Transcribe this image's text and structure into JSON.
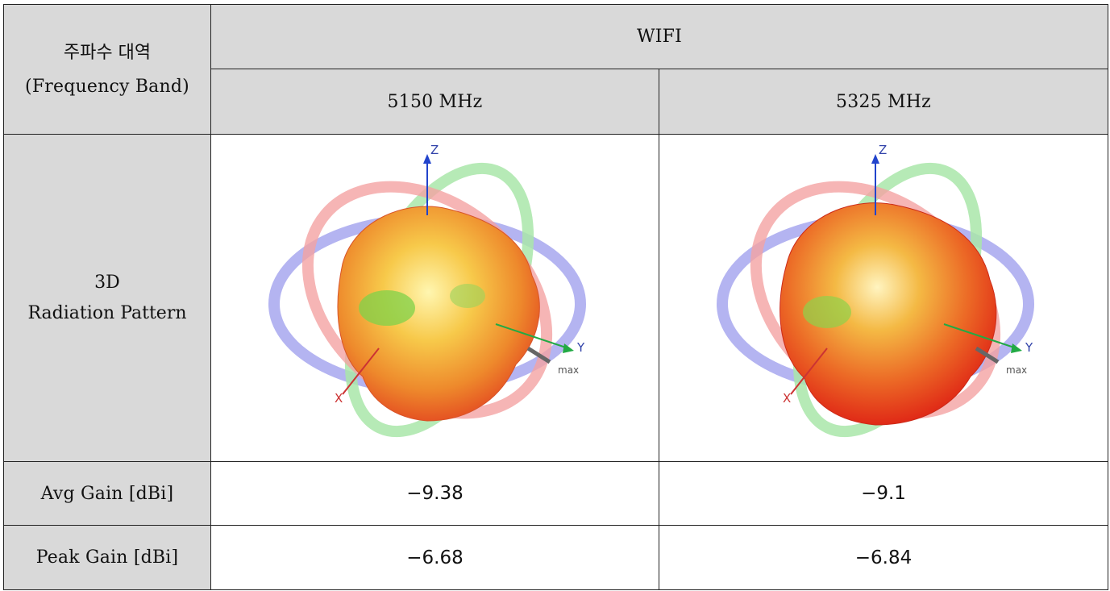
{
  "table": {
    "corner_label_ko": "주파수 대역",
    "corner_label_en": "(Frequency Band)",
    "group_header": "WIFI",
    "columns": [
      "5150 MHz",
      "5325 MHz"
    ],
    "rows": [
      {
        "label_line1": "3D",
        "label_line2": "Radiation Pattern"
      },
      {
        "label": "Avg Gain [dBi]",
        "values": [
          "−9.38",
          "−9.1"
        ]
      },
      {
        "label": "Peak Gain [dBi]",
        "values": [
          "−6.68",
          "−6.84"
        ]
      }
    ]
  },
  "patterns": [
    {
      "axis_z": "Z",
      "axis_y": "Y",
      "axis_x": "X",
      "max_label": "max"
    },
    {
      "axis_z": "Z",
      "axis_y": "Y",
      "axis_x": "X",
      "max_label": "max"
    }
  ],
  "colors": {
    "header_bg": "#d9d9d9",
    "border": "#222222",
    "ring_x": "#f4a3a3",
    "ring_y": "#a9e6a9",
    "ring_z": "#a7a7ee"
  }
}
